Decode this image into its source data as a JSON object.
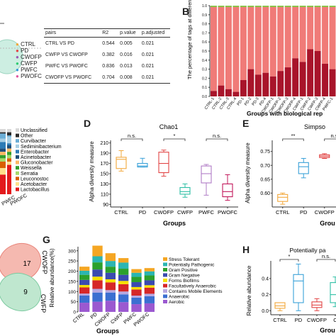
{
  "panelA": {
    "legend": [
      "CTRL",
      "PD",
      "CWOFP",
      "CWFP",
      "PWFC",
      "PWOFC"
    ],
    "legend_colors": [
      "#f2a83b",
      "#e24545",
      "#9b59b6",
      "#2ecc71",
      "#3498db",
      "#e056a0"
    ],
    "table": {
      "headers": [
        "pairs",
        "R2",
        "p.value",
        "p.adjusted"
      ],
      "rows": [
        [
          "CTRL VS PD",
          "0.544",
          "0.005",
          "0.021"
        ],
        [
          "CWFP VS CWOFP",
          "0.382",
          "0.016",
          "0.021"
        ],
        [
          "PWFC VS PWOFC",
          "0.836",
          "0.013",
          "0.021"
        ],
        [
          "CWOFP VS PWOFC",
          "0.704",
          "0.008",
          "0.021"
        ]
      ]
    }
  },
  "panelB": {
    "letter": "B",
    "ylabel": "The percentage of tags at different levels",
    "xlabel": "Groups with biological rep",
    "yticks": [
      "0.0",
      "0.1",
      "0.2",
      "0.3",
      "0.4",
      "0.5",
      "0.6",
      "0.7",
      "0.8",
      "0.9",
      "1.0"
    ],
    "samples": [
      "CTRL-1",
      "CTRL-2",
      "CTRL-3",
      "CTRL-4",
      "PD-1",
      "PD-2",
      "PD-3",
      "PD-4",
      "CWOFP-1",
      "CWOFP-2",
      "CWOFP-3",
      "CWOFP-4",
      "CWFP-1",
      "CWFP-2",
      "CWFP-3",
      "CWFP-4",
      "PWFC-1"
    ],
    "dark_fraction": [
      0.06,
      0.12,
      0.08,
      0.05,
      0.18,
      0.3,
      0.24,
      0.26,
      0.22,
      0.28,
      0.32,
      0.42,
      0.38,
      0.52,
      0.5,
      0.36,
      0.3
    ],
    "colors": {
      "dark": "#a8142a",
      "light": "#f07b78",
      "top": "#8bc34a"
    }
  },
  "panelC": {
    "legend": [
      "Unclassified",
      "Other",
      "Curvibacter",
      "Sediminibacterium",
      "Enterobacter",
      "Acinetobacter",
      "Gluconobacter",
      "Weissella",
      "Serratia",
      "Leuconostoc",
      "Acetobacter",
      "Lactobacillus"
    ],
    "legend_colors": [
      "#d9d9d9",
      "#2b2b2b",
      "#6baed6",
      "#a6cee3",
      "#2c7bb6",
      "#1f4e79",
      "#fdb863",
      "#33a02c",
      "#a6d96a",
      "#d95f02",
      "#fee08b",
      "#e31a1c"
    ],
    "xticks": [
      "PWFC",
      "PWOFC"
    ]
  },
  "panelD": {
    "letter": "D",
    "title": "Chao1",
    "ylabel": "Alpha diversity measure",
    "xlabel": "Groups",
    "ylim": [
      85,
      215
    ],
    "yticks": [
      90,
      110,
      130,
      150,
      170,
      190,
      210
    ],
    "categories": [
      "CTRL",
      "PD",
      "CWOFP",
      "CWFP",
      "PWFC",
      "PWOFC"
    ],
    "colors": [
      "#f2a83b",
      "#3aa1d8",
      "#e24545",
      "#2ebfa5",
      "#b07cc6",
      "#c2185b"
    ],
    "boxes": [
      {
        "min": 155,
        "q1": 160,
        "median": 178,
        "q3": 182,
        "max": 195
      },
      {
        "min": 163,
        "q1": 163,
        "median": 165,
        "q3": 170,
        "max": 180
      },
      {
        "min": 145,
        "q1": 152,
        "median": 170,
        "q3": 192,
        "max": 196
      },
      {
        "min": 104,
        "q1": 110,
        "median": 115,
        "q3": 123,
        "max": 130
      },
      {
        "min": 108,
        "q1": 132,
        "median": 150,
        "q3": 165,
        "max": 168
      },
      {
        "min": 98,
        "q1": 105,
        "median": 115,
        "q3": 130,
        "max": 148
      }
    ],
    "significance": [
      {
        "from": 0,
        "to": 1,
        "label": "n.s."
      },
      {
        "from": 2,
        "to": 3,
        "label": "*"
      },
      {
        "from": 4,
        "to": 5,
        "label": "n.s."
      }
    ]
  },
  "panelE": {
    "letter": "E",
    "title": "Simpso",
    "ylabel": "Alpha diversity measure",
    "xlabel": "Grou",
    "yticks": [
      "0.60",
      "0.65",
      "0.70",
      "0.75"
    ],
    "categories": [
      "CTRL",
      "PD",
      "CWOFP",
      "PW"
    ],
    "colors": [
      "#f2a83b",
      "#3aa1d8",
      "#e24545",
      "#2ebfa5"
    ],
    "boxes": [
      {
        "min": 0.56,
        "q1": 0.57,
        "median": 0.585,
        "q3": 0.595,
        "max": 0.6
      },
      {
        "min": 0.655,
        "q1": 0.67,
        "median": 0.695,
        "q3": 0.71,
        "max": 0.725
      },
      {
        "min": 0.725,
        "q1": 0.728,
        "median": 0.733,
        "q3": 0.738,
        "max": 0.742
      },
      {
        "min": 0.74,
        "q1": 0.745,
        "median": 0.755,
        "q3": 0.765,
        "max": 0.775
      }
    ],
    "significance": [
      {
        "from": 0,
        "to": 1,
        "label": "**"
      },
      {
        "from": 2,
        "to": 3,
        "label": "n.s."
      }
    ]
  },
  "panelF": {
    "labels": [
      "CWOFP",
      "CWFP"
    ],
    "numbers": [
      "17",
      "9"
    ]
  },
  "panelG": {
    "letter": "G",
    "ylabel": "Relative abundance(%)",
    "xlabel": "Groups",
    "yticks": [
      0,
      50,
      100,
      150,
      200,
      250,
      300
    ],
    "ylim": [
      0,
      320
    ],
    "categories": [
      "CTRL",
      "PD",
      "CWOFP",
      "CWFP",
      "PWFC",
      "PWOFC"
    ],
    "legend": [
      "Stress Tolerant",
      "Potentially Pathogenic",
      "Gram Positive",
      "Gram Negative",
      "Forms Biofilms",
      "Facultatively Anaerobic",
      "Contains Mobile Elements",
      "Anaerobic",
      "Aerobic"
    ],
    "series": [
      {
        "name": "Aerobic",
        "color": "#9b59d0",
        "values": [
          45,
          50,
          55,
          48,
          38,
          42
        ]
      },
      {
        "name": "Anaerobic",
        "color": "#3b6fd1",
        "values": [
          35,
          45,
          40,
          38,
          32,
          35
        ]
      },
      {
        "name": "Contains Mobile Elements",
        "color": "#b7a7e0",
        "values": [
          10,
          18,
          12,
          14,
          10,
          12
        ]
      },
      {
        "name": "Facultatively Anaerobic",
        "color": "#d62728",
        "values": [
          30,
          42,
          38,
          36,
          30,
          30
        ]
      },
      {
        "name": "Forms Biofilms",
        "color": "#f7e000",
        "values": [
          12,
          18,
          15,
          16,
          12,
          12
        ]
      },
      {
        "name": "Gram Negative",
        "color": "#3b4ab0",
        "values": [
          25,
          35,
          32,
          30,
          24,
          24
        ]
      },
      {
        "name": "Gram Positive",
        "color": "#2ca02c",
        "values": [
          25,
          35,
          30,
          30,
          26,
          24
        ]
      },
      {
        "name": "Potentially Pathogenic",
        "color": "#2bb5b2",
        "values": [
          20,
          30,
          28,
          30,
          20,
          20
        ]
      },
      {
        "name": "Stress Tolerant",
        "color": "#f5a623",
        "values": [
          20,
          52,
          38,
          22,
          18,
          16
        ]
      }
    ]
  },
  "panelH": {
    "letter": "H",
    "title": "Potentially pa",
    "ylabel": "Relative abundance",
    "xlabel": "Grou",
    "yticks": [
      "0.0",
      "0.2",
      "0.4"
    ],
    "ylim": [
      -0.05,
      0.62
    ],
    "categories": [
      "CTRL",
      "PD",
      "CWOFP",
      "C"
    ],
    "colors": [
      "#f2a83b",
      "#3aa1d8",
      "#e24545",
      "#2ebfa5"
    ],
    "boxes": [
      {
        "min": 0.0,
        "q1": 0.03,
        "median": 0.06,
        "q3": 0.1,
        "max": 0.1
      },
      {
        "min": 0.0,
        "q1": 0.1,
        "median": 0.37,
        "q3": 0.45,
        "max": 0.58
      },
      {
        "min": 0.0,
        "q1": 0.04,
        "median": 0.07,
        "q3": 0.11,
        "max": 0.15
      },
      {
        "min": 0.05,
        "q1": 0.1,
        "median": 0.2,
        "q3": 0.35,
        "max": 0.42
      }
    ],
    "significance": [
      {
        "from": 0,
        "to": 1,
        "label": "*"
      },
      {
        "from": 2,
        "to": 3,
        "label": "n.s."
      }
    ]
  }
}
